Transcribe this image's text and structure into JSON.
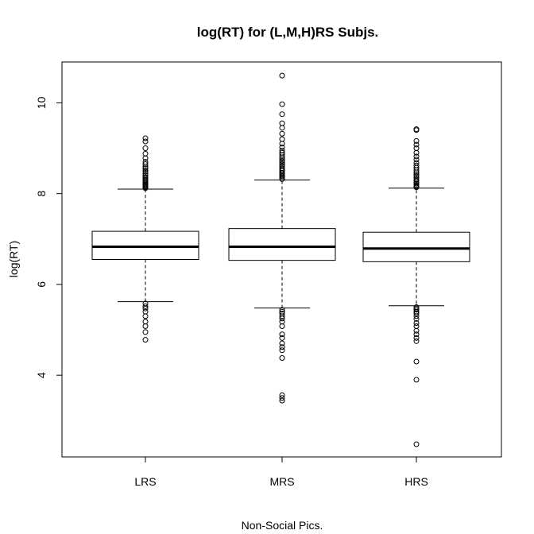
{
  "chart_data": {
    "type": "boxplot",
    "title": "log(RT) for (L,M,H)RS Subjs.",
    "xlabel": "Non-Social Pics.",
    "ylabel": "log(RT)",
    "ylim": [
      2.2,
      10.9
    ],
    "y_ticks": [
      4,
      6,
      8,
      10
    ],
    "categories": [
      "LRS",
      "MRS",
      "HRS"
    ],
    "grid": false,
    "legend": "none",
    "boxes": [
      {
        "name": "LRS",
        "whisker_low": 5.62,
        "q1": 6.55,
        "median": 6.83,
        "q3": 7.17,
        "whisker_high": 8.1,
        "outliers_high": [
          8.12,
          8.14,
          8.16,
          8.18,
          8.2,
          8.22,
          8.25,
          8.28,
          8.3,
          8.33,
          8.36,
          8.4,
          8.44,
          8.48,
          8.52,
          8.56,
          8.6,
          8.65,
          8.7,
          8.78,
          8.88,
          9.0,
          9.15,
          9.22
        ],
        "outliers_low": [
          5.58,
          5.52,
          5.47,
          5.4,
          5.3,
          5.18,
          5.08,
          4.95,
          4.78
        ]
      },
      {
        "name": "MRS",
        "whisker_low": 5.48,
        "q1": 6.53,
        "median": 6.83,
        "q3": 7.23,
        "whisker_high": 8.3,
        "outliers_high": [
          8.32,
          8.35,
          8.38,
          8.4,
          8.43,
          8.46,
          8.5,
          8.53,
          8.56,
          8.6,
          8.64,
          8.68,
          8.72,
          8.76,
          8.8,
          8.85,
          8.9,
          8.95,
          9.02,
          9.1,
          9.2,
          9.32,
          9.45,
          9.55,
          9.75,
          9.97,
          10.6
        ],
        "outliers_low": [
          5.44,
          5.4,
          5.36,
          5.3,
          5.25,
          5.18,
          5.08,
          4.9,
          4.82,
          4.7,
          4.62,
          4.55,
          4.38,
          3.56,
          3.5,
          3.44
        ]
      },
      {
        "name": "HRS",
        "whisker_low": 5.53,
        "q1": 6.5,
        "median": 6.79,
        "q3": 7.15,
        "whisker_high": 8.12,
        "outliers_high": [
          8.14,
          8.16,
          8.19,
          8.22,
          8.25,
          8.28,
          8.31,
          8.35,
          8.39,
          8.43,
          8.47,
          8.52,
          8.57,
          8.62,
          8.68,
          8.75,
          8.82,
          8.9,
          9.0,
          9.08,
          9.16,
          9.4,
          9.42
        ],
        "outliers_low": [
          5.5,
          5.47,
          5.44,
          5.4,
          5.36,
          5.3,
          5.24,
          5.15,
          5.08,
          4.98,
          4.9,
          4.82,
          4.75,
          4.3,
          3.9,
          2.48
        ]
      }
    ]
  }
}
